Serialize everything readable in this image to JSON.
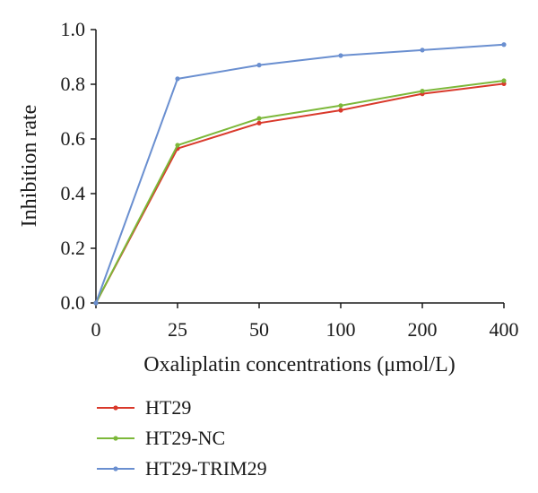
{
  "chart_data": {
    "type": "line",
    "title": "",
    "xlabel": "Oxaliplatin concentrations (μmol/L)",
    "ylabel": "Inhibition rate",
    "categories": [
      "0",
      "25",
      "50",
      "100",
      "200",
      "400"
    ],
    "ylim": [
      0.0,
      1.0
    ],
    "yticks": [
      "0.0",
      "0.2",
      "0.4",
      "0.6",
      "0.8",
      "1.0"
    ],
    "legend_position": "bottom-left",
    "grid": false,
    "series": [
      {
        "name": "HT29",
        "color": "#d9392b",
        "values": [
          0.0,
          0.565,
          0.658,
          0.705,
          0.765,
          0.802
        ]
      },
      {
        "name": "HT29-NC",
        "color": "#7cb83a",
        "values": [
          0.0,
          0.577,
          0.675,
          0.722,
          0.775,
          0.813
        ]
      },
      {
        "name": "HT29-TRIM29",
        "color": "#6a8fd0",
        "values": [
          0.0,
          0.82,
          0.87,
          0.905,
          0.925,
          0.945
        ]
      }
    ]
  }
}
